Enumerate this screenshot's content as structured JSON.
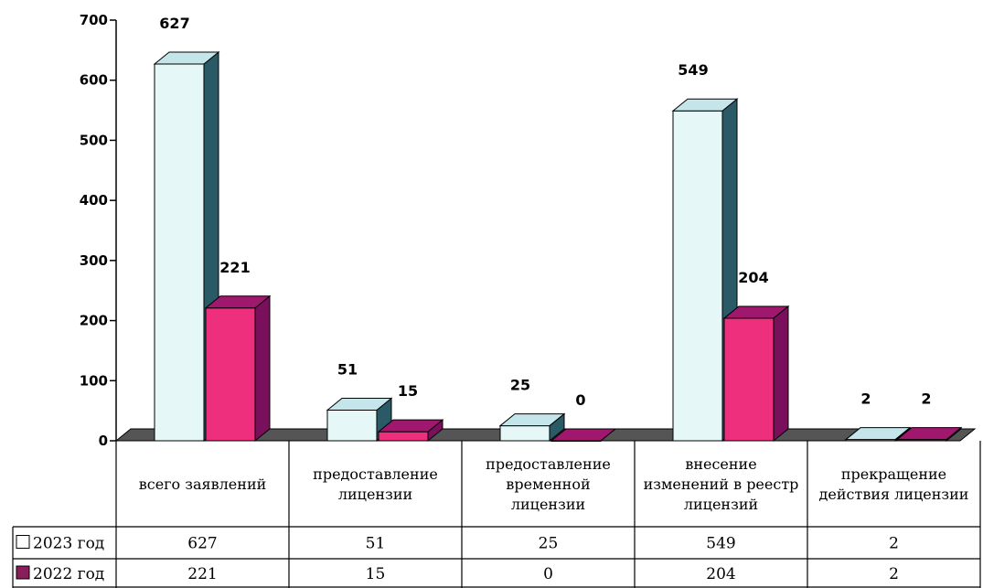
{
  "chart_data": {
    "type": "bar",
    "categories": [
      [
        "всего заявлений"
      ],
      [
        "предоставление",
        "лицензии"
      ],
      [
        "предоставление",
        "временной",
        "лицензии"
      ],
      [
        "внесение",
        "изменений в реестр",
        "лицензий"
      ],
      [
        "прекращение",
        "действия лицензии"
      ]
    ],
    "series": [
      {
        "name": "2023 год",
        "values": [
          627,
          51,
          25,
          549,
          2
        ],
        "color": "#e6f7f7",
        "side_color": "#2a5a66",
        "top_color": "#c4e6ea"
      },
      {
        "name": "2022 год",
        "values": [
          221,
          15,
          0,
          204,
          2
        ],
        "color": "#ee2f7e",
        "side_color": "#7a0f5c",
        "top_color": "#a0186e"
      }
    ],
    "ylim": [
      0,
      700
    ],
    "yticks": [
      0,
      100,
      200,
      300,
      400,
      500,
      600,
      700
    ],
    "legend": "data-table",
    "style": "3d-column"
  }
}
